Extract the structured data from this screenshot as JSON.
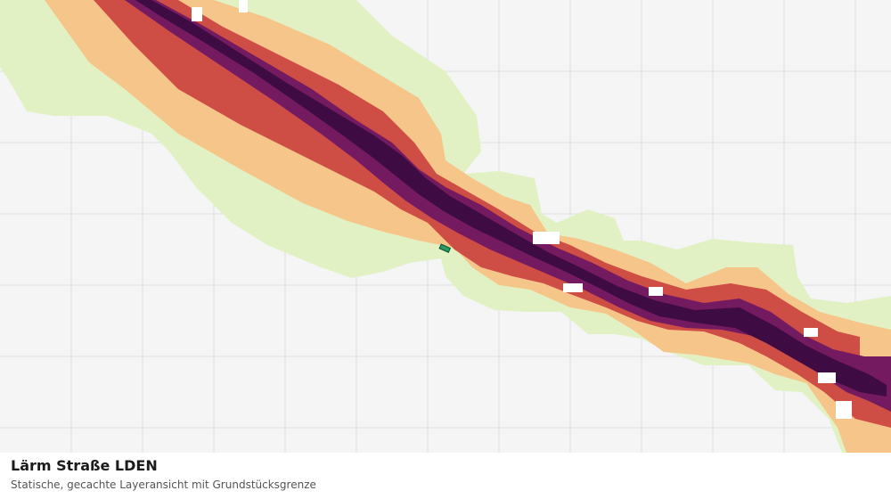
{
  "layer": {
    "title": "Lärm Straße LDEN",
    "subtitle": "Statische, gecachte Layeransicht mit Grundstücksgrenze"
  },
  "colors": {
    "background": "#f4f5f4",
    "grid": "#dedfde",
    "noise_band_1": "#e2f1c4",
    "noise_band_2": "#f5c589",
    "noise_band_3": "#ce4d45",
    "noise_band_4": "#741a61",
    "noise_band_5": "#3e0b42",
    "parcel_outline": "#0f5a3a"
  },
  "icons": {
    "parcel": "parcel-boundary-marker"
  }
}
